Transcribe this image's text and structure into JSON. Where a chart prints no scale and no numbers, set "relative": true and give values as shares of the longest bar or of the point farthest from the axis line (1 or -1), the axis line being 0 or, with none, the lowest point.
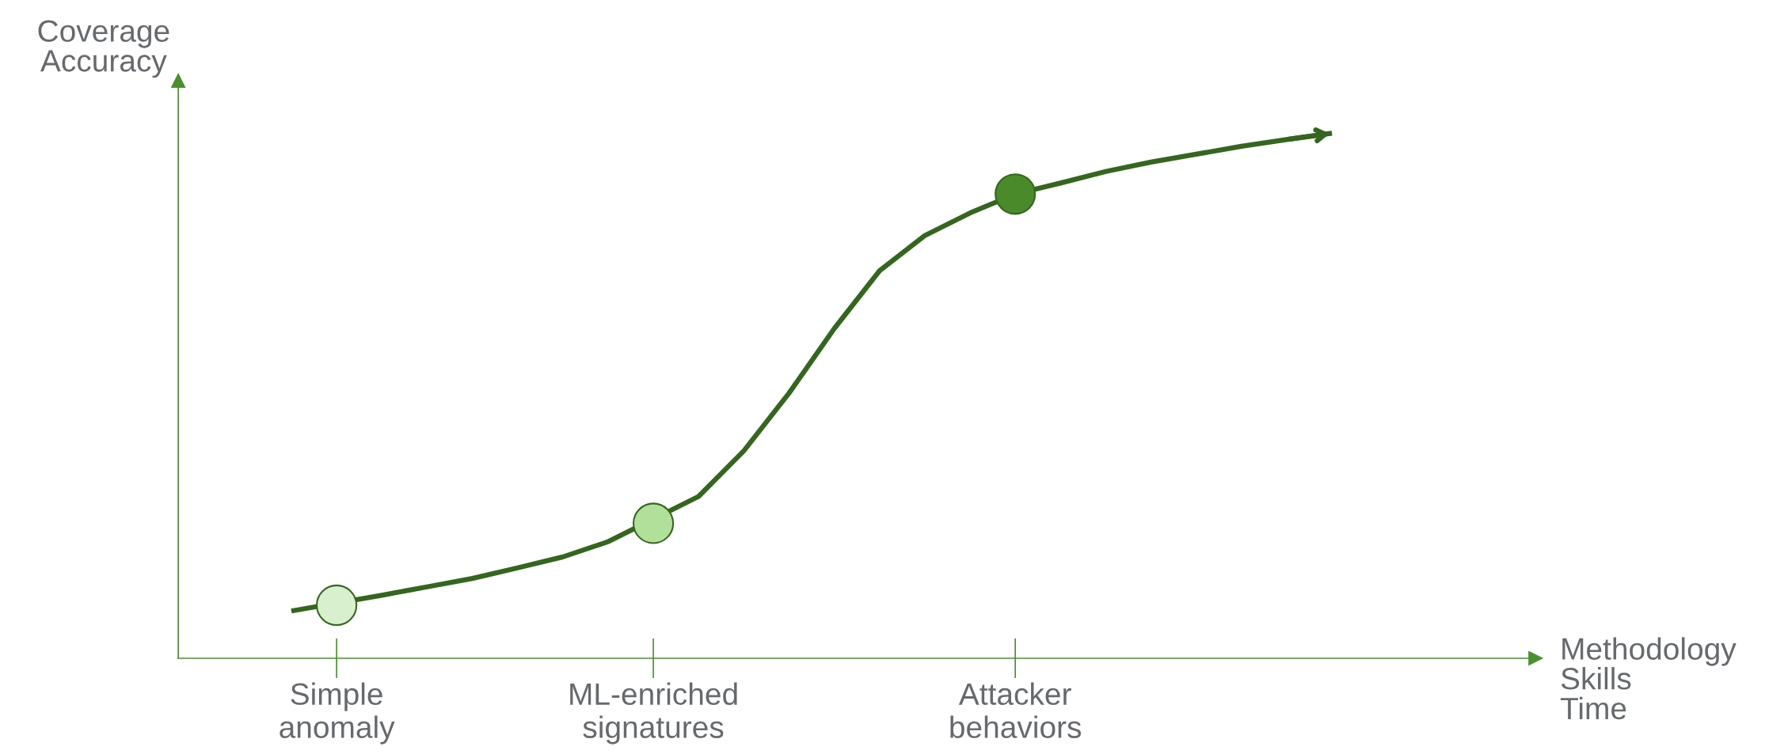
{
  "chart_data": {
    "type": "line",
    "relative": true,
    "xlabel": "Methodology\nSkills\nTime",
    "ylabel": "Coverage\nAccuracy",
    "categories": [
      null,
      null,
      null,
      "Simple\nanomaly",
      null,
      null,
      null,
      null,
      null,
      null,
      "ML-enriched\nsignatures",
      null,
      null,
      null,
      null,
      null,
      null,
      null,
      "Attacker\nbehaviors",
      null,
      null,
      null,
      null,
      null,
      null,
      null,
      null,
      null,
      null,
      null
    ],
    "grid": false,
    "legend": false,
    "marker": "none",
    "line_style": "solid",
    "series": [
      {
        "color": "#35661f",
        "values": [
          null,
          null,
          0.09,
          null,
          0.12,
          0.136,
          0.152,
          0.172,
          0.193,
          0.222,
          null,
          0.308,
          0.395,
          0.505,
          0.628,
          0.738,
          0.805,
          0.848,
          0.884,
          0.905,
          0.927,
          0.945,
          0.96,
          0.975,
          0.988,
          1.0,
          null,
          null,
          null,
          null
        ]
      },
      {
        "type": "scatter",
        "marker": "circle",
        "values": [
          null,
          null,
          null,
          0.101,
          null,
          null,
          null,
          null,
          null,
          null,
          0.257,
          null,
          null,
          null,
          null,
          null,
          null,
          null,
          0.884,
          null,
          null,
          null,
          null,
          null,
          null,
          null,
          null,
          null,
          null,
          null
        ],
        "colors": [
          null,
          null,
          null,
          "#d9f0cf",
          null,
          null,
          null,
          null,
          null,
          null,
          "#b0e09a",
          null,
          null,
          null,
          null,
          null,
          null,
          null,
          "#4a8a2a",
          null,
          null,
          null,
          null,
          null,
          null,
          null,
          null,
          null,
          null,
          null
        ]
      }
    ]
  }
}
